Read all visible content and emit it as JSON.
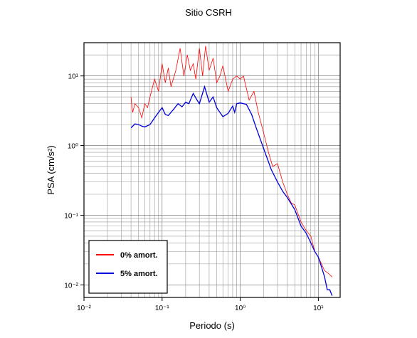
{
  "chart_data": {
    "type": "line",
    "title": "Sitio CSRH",
    "x_label": "Periodo (s)",
    "y_label": "PSA (cm/s²)",
    "log_x": true,
    "log_y": true,
    "grid": true,
    "legend_position": "lower-left",
    "xlim": [
      0.01,
      19
    ],
    "ylim": [
      0.0066,
      30
    ],
    "xticks": [
      {
        "value": 0.01,
        "label": "10⁻²"
      },
      {
        "value": 0.1,
        "label": "10⁻¹"
      },
      {
        "value": 1,
        "label": "10⁰"
      },
      {
        "value": 10,
        "label": "10¹"
      }
    ],
    "yticks": [
      {
        "value": 0.01,
        "label": "10⁻²"
      },
      {
        "value": 0.1,
        "label": "10⁻¹"
      },
      {
        "value": 1,
        "label": "10⁰"
      },
      {
        "value": 10,
        "label": "10¹"
      }
    ],
    "series": [
      {
        "name": "0% amort.",
        "color": "#ff0000",
        "x": [
          0.04,
          0.042,
          0.045,
          0.05,
          0.055,
          0.06,
          0.065,
          0.07,
          0.08,
          0.09,
          0.1,
          0.11,
          0.12,
          0.13,
          0.15,
          0.17,
          0.19,
          0.21,
          0.23,
          0.25,
          0.27,
          0.3,
          0.33,
          0.36,
          0.4,
          0.45,
          0.5,
          0.55,
          0.6,
          0.7,
          0.8,
          0.9,
          1.0,
          1.1,
          1.3,
          1.5,
          1.7,
          2.0,
          2.3,
          2.6,
          3.0,
          3.5,
          4,
          4.5,
          5,
          6,
          7,
          8,
          9,
          10,
          11,
          12,
          13,
          14,
          15
        ],
        "values": [
          5.0,
          3.0,
          4.0,
          3.5,
          2.5,
          4.0,
          3.5,
          5.0,
          9.0,
          6.0,
          15,
          8,
          13,
          7,
          12,
          25,
          10,
          20,
          12,
          15,
          9,
          25,
          10,
          27,
          12,
          18,
          8,
          10,
          14,
          6,
          9,
          10,
          9,
          10,
          4.5,
          6,
          3,
          1.5,
          0.8,
          0.5,
          0.55,
          0.3,
          0.2,
          0.15,
          0.14,
          0.08,
          0.06,
          0.05,
          0.03,
          0.025,
          0.02,
          0.016,
          0.015,
          0.014,
          0.013
        ]
      },
      {
        "name": "5% amort.",
        "color": "#0000dd",
        "x": [
          0.04,
          0.045,
          0.05,
          0.055,
          0.06,
          0.07,
          0.08,
          0.09,
          0.1,
          0.11,
          0.12,
          0.14,
          0.16,
          0.18,
          0.2,
          0.22,
          0.25,
          0.28,
          0.3,
          0.35,
          0.4,
          0.45,
          0.5,
          0.6,
          0.7,
          0.8,
          0.85,
          0.9,
          1.0,
          1.2,
          1.4,
          1.6,
          2.0,
          2.5,
          3.0,
          3.5,
          4,
          5,
          6,
          7,
          8,
          9,
          10,
          11,
          12,
          13,
          14,
          15
        ],
        "values": [
          1.8,
          2.05,
          2.0,
          1.9,
          1.85,
          2.0,
          2.5,
          3.0,
          3.5,
          2.8,
          2.7,
          3.3,
          4.0,
          3.6,
          4.2,
          4.0,
          5.6,
          4.5,
          4.0,
          7.0,
          4.2,
          5.0,
          3.5,
          2.6,
          2.9,
          3.7,
          3.0,
          4.0,
          4.1,
          3.9,
          2.8,
          1.8,
          0.9,
          0.45,
          0.3,
          0.22,
          0.18,
          0.12,
          0.07,
          0.055,
          0.04,
          0.03,
          0.025,
          0.018,
          0.013,
          0.0085,
          0.0085,
          0.007
        ]
      }
    ]
  }
}
